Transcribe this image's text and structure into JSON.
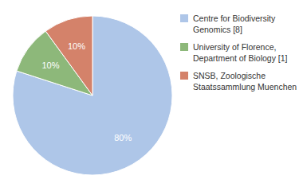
{
  "chart_data": {
    "type": "pie",
    "categories": [
      "Centre for Biodiversity\nGenomics [8]",
      "University of Florence,\nDepartment of Biology [1]",
      "SNSB, Zoologische\nStaatssammlung Muenchen [1]"
    ],
    "values": [
      80,
      10,
      10
    ],
    "value_labels": [
      "80%",
      "10%",
      "10%"
    ],
    "colors": [
      "#aec6e8",
      "#8db87a",
      "#d4826a"
    ],
    "data_labels": true,
    "legend": "right"
  }
}
